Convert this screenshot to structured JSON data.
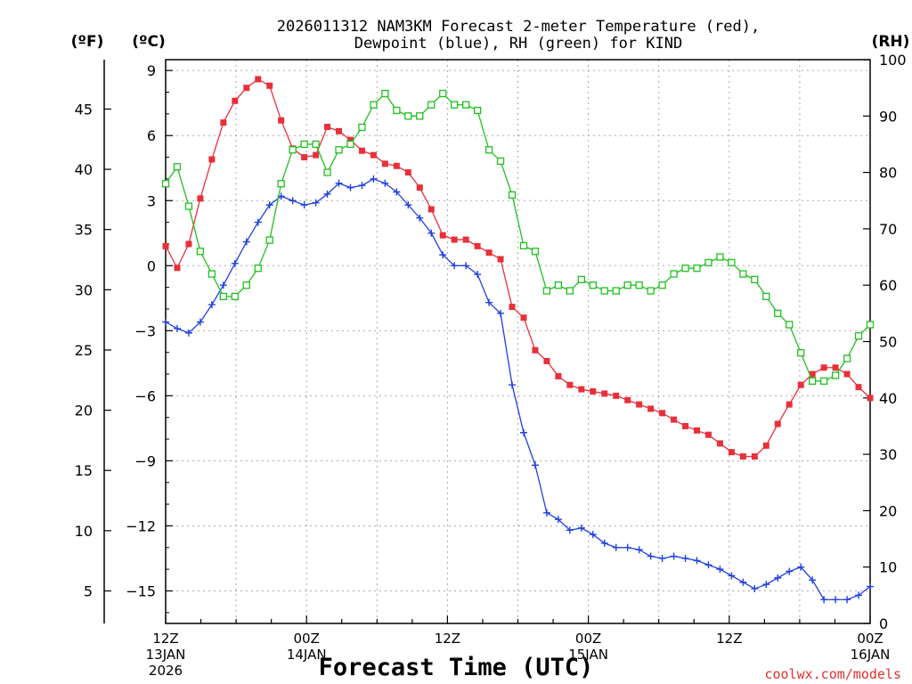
{
  "chart_data": {
    "type": "line",
    "title_line1": "2026011312 NAM3KM Forecast 2-meter Temperature (red),",
    "title_line2": "Dewpoint (blue), RH (green) for KIND",
    "xlabel": "Forecast Time (UTC)",
    "credit": "coolwx.com/models",
    "unit_labels": {
      "fahrenheit": "(ºF)",
      "celsius": "(ºC)",
      "rh": "(RH)"
    },
    "x_hours_range": [
      0,
      60
    ],
    "celsius_range": [
      -16.5,
      9.5
    ],
    "rh_range": [
      0,
      100
    ],
    "celsius_ticks": [
      "9",
      "6",
      "3",
      "0",
      "−3",
      "−6",
      "−9",
      "−12",
      "−15"
    ],
    "celsius_tick_values": [
      9,
      6,
      3,
      0,
      -3,
      -6,
      -9,
      -12,
      -15
    ],
    "fahrenheit_ticks": [
      "45",
      "40",
      "35",
      "30",
      "25",
      "20",
      "15",
      "10",
      "5"
    ],
    "fahrenheit_tick_values": [
      45,
      40,
      35,
      30,
      25,
      20,
      15,
      10,
      5
    ],
    "rh_ticks": [
      "100",
      "90",
      "80",
      "70",
      "60",
      "50",
      "40",
      "30",
      "20",
      "10",
      "0"
    ],
    "rh_tick_values": [
      100,
      90,
      80,
      70,
      60,
      50,
      40,
      30,
      20,
      10,
      0
    ],
    "x_ticks": [
      {
        "hour": 0,
        "time": "12Z",
        "date": "13JAN",
        "year": "2026"
      },
      {
        "hour": 12,
        "time": "00Z",
        "date": "14JAN",
        "year": ""
      },
      {
        "hour": 24,
        "time": "12Z",
        "date": "",
        "year": ""
      },
      {
        "hour": 36,
        "time": "00Z",
        "date": "15JAN",
        "year": ""
      },
      {
        "hour": 48,
        "time": "12Z",
        "date": "",
        "year": ""
      },
      {
        "hour": 60,
        "time": "00Z",
        "date": "16JAN",
        "year": ""
      }
    ],
    "series": [
      {
        "name": "2-meter Temperature",
        "axis": "celsius",
        "color": "#e8303a",
        "marker": "filled-square",
        "values": [
          0.9,
          -0.1,
          1.0,
          3.1,
          4.9,
          6.6,
          7.6,
          8.2,
          8.6,
          8.3,
          6.7,
          5.4,
          5.0,
          5.1,
          6.4,
          6.2,
          5.8,
          5.3,
          5.1,
          4.7,
          4.6,
          4.3,
          3.6,
          2.6,
          1.4,
          1.2,
          1.2,
          0.9,
          0.6,
          0.3,
          -1.9,
          -2.4,
          -3.9,
          -4.4,
          -5.1,
          -5.5,
          -5.7,
          -5.8,
          -5.9,
          -6.0,
          -6.2,
          -6.4,
          -6.6,
          -6.8,
          -7.1,
          -7.4,
          -7.6,
          -7.8,
          -8.2,
          -8.6,
          -8.8,
          -8.8,
          -8.3,
          -7.3,
          -6.4,
          -5.5,
          -5.0,
          -4.7,
          -4.7,
          -5.0,
          -5.6,
          -6.1
        ]
      },
      {
        "name": "Dewpoint",
        "axis": "celsius",
        "color": "#2040e0",
        "marker": "plus",
        "values": [
          -2.6,
          -2.9,
          -3.1,
          -2.6,
          -1.8,
          -0.9,
          0.1,
          1.1,
          2.0,
          2.8,
          3.2,
          3.0,
          2.8,
          2.9,
          3.3,
          3.8,
          3.6,
          3.7,
          4.0,
          3.8,
          3.4,
          2.8,
          2.2,
          1.5,
          0.5,
          0.0,
          0.0,
          -0.4,
          -1.7,
          -2.2,
          -5.5,
          -7.7,
          -9.2,
          -11.4,
          -11.7,
          -12.2,
          -12.1,
          -12.4,
          -12.8,
          -13.0,
          -13.0,
          -13.1,
          -13.4,
          -13.5,
          -13.4,
          -13.5,
          -13.6,
          -13.8,
          -14.0,
          -14.3,
          -14.6,
          -14.9,
          -14.7,
          -14.4,
          -14.1,
          -13.9,
          -14.5,
          -15.4,
          -15.4,
          -15.4,
          -15.2,
          -14.8
        ]
      },
      {
        "name": "RH",
        "axis": "rh",
        "color": "#20c020",
        "marker": "open-square",
        "values": [
          78,
          81,
          74,
          66,
          62,
          58,
          58,
          60,
          63,
          68,
          78,
          84,
          85,
          85,
          80,
          84,
          85,
          88,
          92,
          94,
          91,
          90,
          90,
          92,
          94,
          92,
          92,
          91,
          84,
          82,
          76,
          67,
          66,
          59,
          60,
          59,
          61,
          60,
          59,
          59,
          60,
          60,
          59,
          60,
          62,
          63,
          63,
          64,
          65,
          64,
          62,
          61,
          58,
          55,
          53,
          48,
          43,
          43,
          44,
          47,
          51,
          53
        ]
      }
    ]
  }
}
